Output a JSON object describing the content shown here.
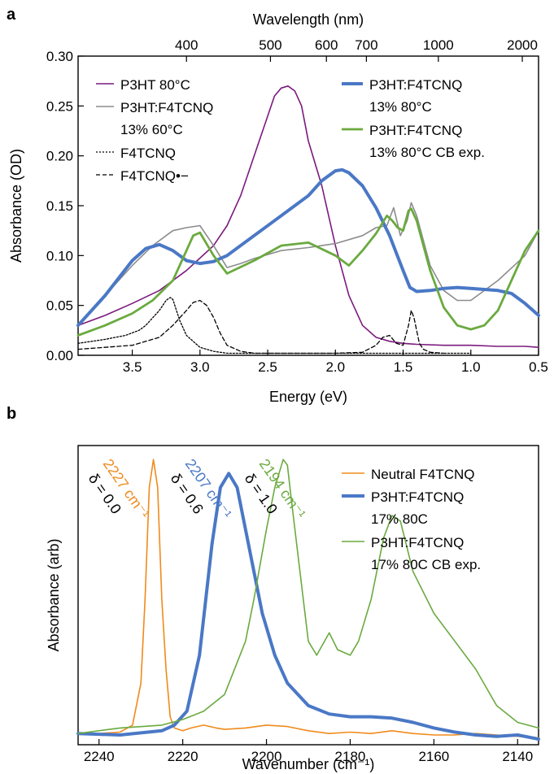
{
  "chart_data": [
    {
      "panel": "a",
      "type": "line",
      "xlabel": "Energy (eV)",
      "ylabel": "Absorbance (OD)",
      "top_axis_label": "Wavelength (nm)",
      "xlim": [
        3.9,
        0.5
      ],
      "ylim": [
        0.0,
        0.3
      ],
      "x_ticks": [
        "3.5",
        "3.0",
        "2.5",
        "2.0",
        "1.5",
        "1.0",
        "0.5"
      ],
      "x_tick_values": [
        3.5,
        3.0,
        2.5,
        2.0,
        1.5,
        1.0,
        0.5
      ],
      "y_ticks": [
        "0.00",
        "0.05",
        "0.10",
        "0.15",
        "0.20",
        "0.25",
        "0.30"
      ],
      "y_tick_values": [
        0.0,
        0.05,
        0.1,
        0.15,
        0.2,
        0.25,
        0.3
      ],
      "top_ticks": [
        "400",
        "500",
        "600",
        "700",
        "1000",
        "2000"
      ],
      "top_tick_values": [
        400,
        500,
        600,
        700,
        1000,
        2000
      ],
      "legend_left": [
        "P3HT 80°C",
        "P3HT:F4TCNQ",
        "13% 60°C",
        "F4TCNQ",
        "F4TCNQ•−"
      ],
      "legend_right": [
        "P3HT:F4TCNQ",
        "13% 80°C",
        "P3HT:F4TCNQ",
        "13% 80°C CB exp."
      ],
      "series": [
        {
          "name": "P3HT 80°C",
          "color": "#7b1a7e",
          "width": 1.6,
          "dash": "",
          "x": [
            3.9,
            3.7,
            3.5,
            3.3,
            3.1,
            2.9,
            2.8,
            2.7,
            2.6,
            2.5,
            2.45,
            2.4,
            2.35,
            2.3,
            2.25,
            2.2,
            2.1,
            2.0,
            1.9,
            1.8,
            1.7,
            1.6,
            1.5,
            1.4,
            1.2,
            1.0,
            0.8,
            0.6,
            0.5
          ],
          "y": [
            0.03,
            0.04,
            0.052,
            0.065,
            0.085,
            0.11,
            0.13,
            0.16,
            0.2,
            0.24,
            0.26,
            0.268,
            0.27,
            0.265,
            0.25,
            0.215,
            0.17,
            0.11,
            0.06,
            0.03,
            0.018,
            0.014,
            0.012,
            0.011,
            0.01,
            0.01,
            0.009,
            0.009,
            0.008
          ]
        },
        {
          "name": "P3HT:F4TCNQ 13% 60°C",
          "color": "#8c8c8c",
          "width": 1.6,
          "dash": "",
          "x": [
            3.9,
            3.7,
            3.5,
            3.35,
            3.2,
            3.1,
            3.0,
            2.9,
            2.8,
            2.7,
            2.6,
            2.4,
            2.2,
            2.0,
            1.8,
            1.7,
            1.62,
            1.57,
            1.52,
            1.47,
            1.44,
            1.4,
            1.3,
            1.2,
            1.1,
            1.0,
            0.8,
            0.6,
            0.5
          ],
          "y": [
            0.03,
            0.06,
            0.09,
            0.11,
            0.125,
            0.128,
            0.13,
            0.11,
            0.088,
            0.092,
            0.097,
            0.105,
            0.108,
            0.112,
            0.12,
            0.128,
            0.13,
            0.148,
            0.12,
            0.135,
            0.153,
            0.14,
            0.09,
            0.065,
            0.055,
            0.055,
            0.075,
            0.1,
            0.125
          ]
        },
        {
          "name": "P3HT:F4TCNQ 13% 80°C",
          "color": "#4a78c6",
          "width": 4,
          "dash": "",
          "x": [
            3.9,
            3.7,
            3.5,
            3.4,
            3.3,
            3.2,
            3.1,
            3.0,
            2.9,
            2.8,
            2.6,
            2.4,
            2.2,
            2.1,
            2.0,
            1.95,
            1.9,
            1.8,
            1.7,
            1.6,
            1.5,
            1.45,
            1.4,
            1.3,
            1.2,
            1.1,
            1.0,
            0.9,
            0.8,
            0.7,
            0.6,
            0.5
          ],
          "y": [
            0.03,
            0.06,
            0.095,
            0.107,
            0.111,
            0.105,
            0.095,
            0.092,
            0.094,
            0.1,
            0.12,
            0.14,
            0.16,
            0.175,
            0.185,
            0.186,
            0.183,
            0.17,
            0.148,
            0.12,
            0.085,
            0.068,
            0.064,
            0.065,
            0.067,
            0.068,
            0.067,
            0.066,
            0.065,
            0.062,
            0.052,
            0.04
          ]
        },
        {
          "name": "P3HT:F4TCNQ 13% 80°C CB exp.",
          "color": "#6aaa3f",
          "width": 2.8,
          "dash": "",
          "x": [
            3.9,
            3.7,
            3.5,
            3.35,
            3.2,
            3.1,
            3.05,
            3.0,
            2.9,
            2.8,
            2.6,
            2.4,
            2.2,
            2.0,
            1.9,
            1.8,
            1.7,
            1.62,
            1.58,
            1.54,
            1.5,
            1.46,
            1.44,
            1.4,
            1.3,
            1.2,
            1.1,
            1.0,
            0.9,
            0.8,
            0.7,
            0.6,
            0.5
          ],
          "y": [
            0.02,
            0.03,
            0.042,
            0.055,
            0.075,
            0.105,
            0.12,
            0.123,
            0.1,
            0.082,
            0.095,
            0.11,
            0.113,
            0.1,
            0.09,
            0.105,
            0.122,
            0.14,
            0.135,
            0.128,
            0.125,
            0.145,
            0.147,
            0.135,
            0.085,
            0.048,
            0.03,
            0.026,
            0.03,
            0.045,
            0.075,
            0.105,
            0.125
          ]
        },
        {
          "name": "F4TCNQ",
          "color": "#000000",
          "width": 1.3,
          "dash": "2,2",
          "x": [
            3.9,
            3.7,
            3.55,
            3.45,
            3.4,
            3.3,
            3.25,
            3.22,
            3.2,
            3.15,
            3.1,
            3.0,
            2.9,
            2.8,
            2.6,
            2.2,
            1.8,
            1.5,
            1.2,
            1.0
          ],
          "y": [
            0.012,
            0.016,
            0.02,
            0.025,
            0.03,
            0.045,
            0.055,
            0.058,
            0.056,
            0.035,
            0.02,
            0.008,
            0.004,
            0.002,
            0.002,
            0.002,
            0.002,
            0.002,
            0.002,
            0.002
          ]
        },
        {
          "name": "F4TCNQ•−",
          "color": "#000000",
          "width": 1.3,
          "dash": "5,3",
          "x": [
            3.9,
            3.7,
            3.5,
            3.3,
            3.2,
            3.1,
            3.05,
            3.0,
            2.95,
            2.9,
            2.85,
            2.8,
            2.7,
            2.6,
            2.3,
            2.0,
            1.8,
            1.7,
            1.65,
            1.6,
            1.55,
            1.5,
            1.46,
            1.44,
            1.42,
            1.38,
            1.35,
            1.3,
            1.2
          ],
          "y": [
            0.006,
            0.008,
            0.01,
            0.018,
            0.03,
            0.045,
            0.053,
            0.055,
            0.05,
            0.038,
            0.022,
            0.01,
            0.004,
            0.002,
            0.002,
            0.002,
            0.003,
            0.01,
            0.018,
            0.02,
            0.012,
            0.01,
            0.03,
            0.045,
            0.038,
            0.012,
            0.006,
            0.003,
            0.002
          ]
        }
      ]
    },
    {
      "panel": "b",
      "type": "line",
      "xlabel": "Wavenumber (cm⁻¹)",
      "ylabel": "Absorbance (arb)",
      "xlim": [
        2245,
        2135
      ],
      "ylim": [
        -0.02,
        1.05
      ],
      "x_ticks": [
        "2240",
        "2220",
        "2200",
        "2180",
        "2160",
        "2140"
      ],
      "x_tick_values": [
        2240,
        2220,
        2200,
        2180,
        2160,
        2140
      ],
      "legend": [
        "Neutral F4TCNQ",
        "P3HT:F4TCNQ",
        "17% 80C",
        "P3HT:F4TCNQ",
        "17% 80C CB exp."
      ],
      "annotations": [
        {
          "text": "2227 cm⁻¹",
          "color": "#f08a1c",
          "at": 2227
        },
        {
          "text": "2207 cm⁻¹",
          "color": "#4a78c6",
          "at": 2207
        },
        {
          "text": "2194 cm⁻¹",
          "color": "#6aaa3f",
          "at": 2194
        },
        {
          "text": "δ = 0.0",
          "color": "#000000",
          "at": 2227
        },
        {
          "text": "δ = 0.6",
          "color": "#000000",
          "at": 2207
        },
        {
          "text": "δ = 1.0",
          "color": "#000000",
          "at": 2194
        }
      ],
      "series": [
        {
          "name": "Neutral F4TCNQ",
          "color": "#f08a1c",
          "width": 1.6,
          "x": [
            2245,
            2240,
            2235,
            2232,
            2230,
            2229,
            2228,
            2227,
            2226,
            2225,
            2224,
            2223,
            2222,
            2220,
            2218,
            2215,
            2212,
            2210,
            2205,
            2200,
            2195,
            2190,
            2185,
            2180,
            2175,
            2170,
            2165,
            2160,
            2155,
            2150,
            2145,
            2140,
            2135
          ],
          "y": [
            0.02,
            0.02,
            0.025,
            0.05,
            0.2,
            0.5,
            0.9,
            1.0,
            0.9,
            0.5,
            0.25,
            0.08,
            0.04,
            0.03,
            0.04,
            0.05,
            0.04,
            0.035,
            0.04,
            0.05,
            0.045,
            0.03,
            0.02,
            0.025,
            0.02,
            0.03,
            0.02,
            0.015,
            0.015,
            0.02,
            0.015,
            0.01,
            0.005
          ]
        },
        {
          "name": "P3HT:F4TCNQ 17% 80C",
          "color": "#4a78c6",
          "width": 4,
          "x": [
            2245,
            2235,
            2225,
            2222,
            2219,
            2216,
            2213,
            2211,
            2209,
            2207,
            2205,
            2203,
            2201,
            2198,
            2195,
            2190,
            2185,
            2180,
            2175,
            2170,
            2165,
            2160,
            2155,
            2150,
            2145,
            2140,
            2135
          ],
          "y": [
            0.02,
            0.015,
            0.03,
            0.05,
            0.1,
            0.3,
            0.7,
            0.9,
            0.95,
            0.9,
            0.75,
            0.6,
            0.45,
            0.3,
            0.2,
            0.12,
            0.09,
            0.08,
            0.08,
            0.075,
            0.06,
            0.04,
            0.025,
            0.015,
            0.01,
            0.015,
            0.0
          ]
        },
        {
          "name": "P3HT:F4TCNQ 17% 80C CB exp.",
          "color": "#6aaa3f",
          "width": 1.6,
          "x": [
            2245,
            2235,
            2225,
            2220,
            2215,
            2210,
            2205,
            2203,
            2200,
            2198,
            2196,
            2195,
            2194,
            2192,
            2190,
            2188,
            2185,
            2183,
            2180,
            2178,
            2175,
            2172,
            2170,
            2168,
            2165,
            2160,
            2155,
            2150,
            2145,
            2140,
            2135
          ],
          "y": [
            0.02,
            0.04,
            0.05,
            0.07,
            0.1,
            0.16,
            0.35,
            0.5,
            0.75,
            0.9,
            1.0,
            0.98,
            0.85,
            0.6,
            0.35,
            0.3,
            0.38,
            0.32,
            0.3,
            0.35,
            0.5,
            0.72,
            0.8,
            0.78,
            0.6,
            0.45,
            0.35,
            0.25,
            0.12,
            0.06,
            0.04
          ]
        }
      ]
    }
  ],
  "panel_labels": {
    "a": "a",
    "b": "b"
  }
}
